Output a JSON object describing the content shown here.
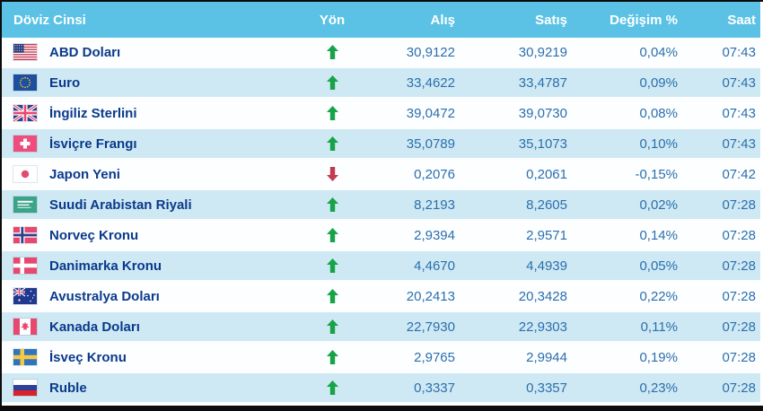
{
  "table": {
    "columns": {
      "currency": "Döviz Cinsi",
      "direction": "Yön",
      "buy": "Alış",
      "sell": "Satış",
      "change": "Değişim %",
      "time": "Saat"
    },
    "rows": [
      {
        "flag": "us",
        "name": "ABD Doları",
        "direction": "up",
        "buy": "30,9122",
        "sell": "30,9219",
        "change": "0,04%",
        "time": "07:43"
      },
      {
        "flag": "eu",
        "name": "Euro",
        "direction": "up",
        "buy": "33,4622",
        "sell": "33,4787",
        "change": "0,09%",
        "time": "07:43"
      },
      {
        "flag": "gb",
        "name": "İngiliz Sterlini",
        "direction": "up",
        "buy": "39,0472",
        "sell": "39,0730",
        "change": "0,08%",
        "time": "07:43"
      },
      {
        "flag": "ch",
        "name": "İsviçre Frangı",
        "direction": "up",
        "buy": "35,0789",
        "sell": "35,1073",
        "change": "0,10%",
        "time": "07:43"
      },
      {
        "flag": "jp",
        "name": "Japon Yeni",
        "direction": "down",
        "buy": "0,2076",
        "sell": "0,2061",
        "change": "-0,15%",
        "time": "07:42"
      },
      {
        "flag": "sa",
        "name": "Suudi Arabistan Riyali",
        "direction": "up",
        "buy": "8,2193",
        "sell": "8,2605",
        "change": "0,02%",
        "time": "07:28"
      },
      {
        "flag": "no",
        "name": "Norveç Kronu",
        "direction": "up",
        "buy": "2,9394",
        "sell": "2,9571",
        "change": "0,14%",
        "time": "07:28"
      },
      {
        "flag": "dk",
        "name": "Danimarka Kronu",
        "direction": "up",
        "buy": "4,4670",
        "sell": "4,4939",
        "change": "0,05%",
        "time": "07:28"
      },
      {
        "flag": "au",
        "name": "Avustralya Doları",
        "direction": "up",
        "buy": "20,2413",
        "sell": "20,3428",
        "change": "0,22%",
        "time": "07:28"
      },
      {
        "flag": "ca",
        "name": "Kanada Doları",
        "direction": "up",
        "buy": "22,7930",
        "sell": "22,9303",
        "change": "0,11%",
        "time": "07:28"
      },
      {
        "flag": "se",
        "name": "İsveç Kronu",
        "direction": "up",
        "buy": "2,9765",
        "sell": "2,9944",
        "change": "0,19%",
        "time": "07:28"
      },
      {
        "flag": "ru",
        "name": "Ruble",
        "direction": "up",
        "buy": "0,3337",
        "sell": "0,3357",
        "change": "0,23%",
        "time": "07:28"
      }
    ]
  },
  "colors": {
    "header_bg": "#5bc2e5",
    "row_bg": "#fdfeff",
    "row_alt_bg": "#cfe9f4",
    "name_text": "#0a3a8c",
    "value_text": "#2a6fad",
    "up_arrow": "#18a348",
    "down_arrow": "#c23a4f",
    "frame": "#0c0c0c"
  }
}
